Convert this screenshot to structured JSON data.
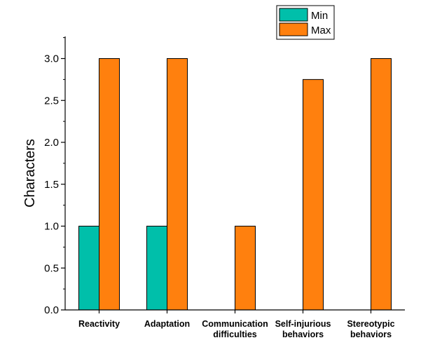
{
  "chart_data": {
    "type": "bar",
    "categories": [
      [
        "Reactivity"
      ],
      [
        "Adaptation"
      ],
      [
        "Communication",
        "difficulties"
      ],
      [
        "Self-injurious",
        "behaviors"
      ],
      [
        "Stereotypic",
        "behaviors"
      ]
    ],
    "series": [
      {
        "name": "Min",
        "color": "#00BFAA",
        "values": [
          1,
          1,
          0,
          0,
          0
        ]
      },
      {
        "name": "Max",
        "color": "#FF800E",
        "values": [
          3,
          3,
          1,
          2.75,
          3
        ]
      }
    ],
    "ylabel": "Characters",
    "xlabel": "",
    "ylim": [
      0,
      3.2
    ],
    "yticks": [
      "0.0",
      "0.5",
      "1.0",
      "1.5",
      "2.0",
      "2.5",
      "3.0"
    ],
    "legend": "top",
    "grid": false
  }
}
